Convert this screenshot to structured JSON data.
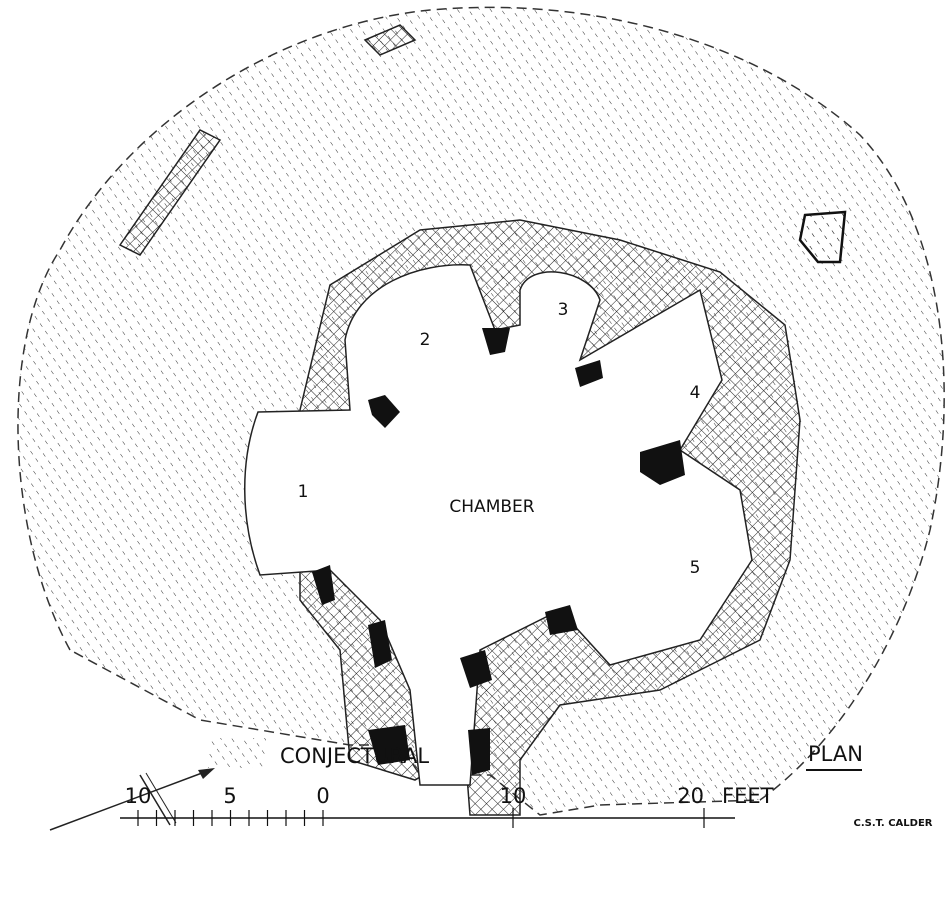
{
  "labels": {
    "recesses": [
      "1",
      "2",
      "3",
      "4",
      "5"
    ],
    "chamber": "CHAMBER"
  },
  "legend": {
    "label": "CONJECTURAL"
  },
  "title": "PLAN",
  "scale": {
    "labels": [
      "10",
      "5",
      "0",
      "10",
      "20"
    ],
    "unit": "FEET"
  },
  "credit": "C.S.T. CALDER"
}
